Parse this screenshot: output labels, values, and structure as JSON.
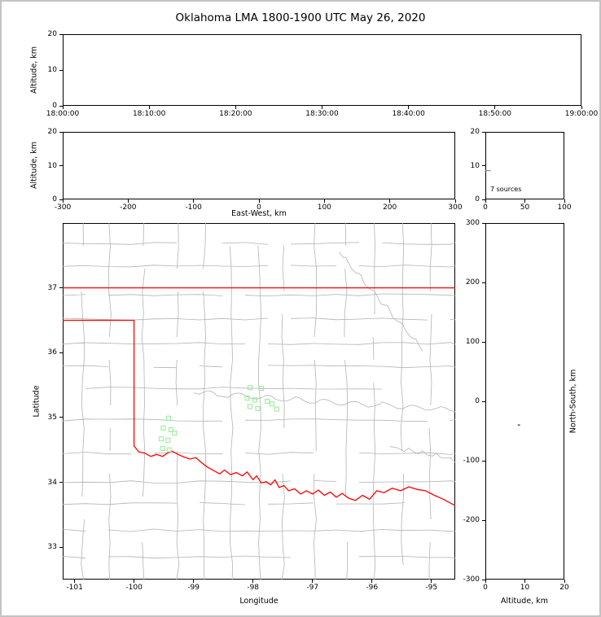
{
  "title": "Oklahoma LMA 1800-1900 UTC May 26, 2020",
  "colors": {
    "state_border": "#ff0000",
    "county_line": "#b3b3b3",
    "source_marker": "#90EE90",
    "axis": "#000000",
    "figure_border": "#c3c3c3",
    "faint_point": "#777777"
  },
  "panels": {
    "time_height": {
      "ylabel": "Altitude, km",
      "yticks": [
        "20",
        "10",
        "0"
      ],
      "xticks": [
        "18:00:00",
        "18:10:00",
        "18:20:00",
        "18:30:00",
        "18:40:00",
        "18:50:00",
        "19:00:00"
      ]
    },
    "ew_height": {
      "ylabel": "Altitude, km",
      "xlabel": "East-West, km",
      "yticks": [
        "20",
        "10",
        "0"
      ],
      "xticks": [
        "-300",
        "-200",
        "-100",
        "0",
        "100",
        "200",
        "300"
      ]
    },
    "histogram": {
      "annotation": "7 sources",
      "yticks": [
        "20",
        "10",
        "0"
      ],
      "xticks": [
        "0",
        "50",
        "100"
      ]
    },
    "map": {
      "xlabel": "Longitude",
      "ylabel": "Latitude",
      "xticks": [
        "-101",
        "-100",
        "-99",
        "-98",
        "-97",
        "-96",
        "-95"
      ],
      "yticks": [
        "37",
        "36",
        "35",
        "34",
        "33"
      ],
      "xlim": [
        -101.2,
        -94.6
      ],
      "ylim": [
        32.5,
        38.0
      ]
    },
    "ns_height": {
      "xlabel": "Altitude, km",
      "ylabel_right": "North-South, km",
      "xticks": [
        "0",
        "10",
        "20"
      ],
      "yticks": [
        "300",
        "200",
        "100",
        "0",
        "-100",
        "-200",
        "-300"
      ],
      "xlim": [
        0,
        20
      ],
      "ylim": [
        -300,
        300
      ]
    }
  },
  "chart_data": {
    "type": "scatter",
    "title": "Oklahoma LMA 1800-1900 UTC May 26, 2020",
    "time_window_utc": [
      "18:00:00",
      "19:00:00"
    ],
    "marker": "open-square",
    "marker_color": "#90EE90",
    "annotation": "7 sources",
    "sources_lonlat": [
      [
        -98.05,
        35.46
      ],
      [
        -97.86,
        35.45
      ],
      [
        -98.1,
        35.3
      ],
      [
        -97.97,
        35.27
      ],
      [
        -98.05,
        35.17
      ],
      [
        -97.92,
        35.14
      ],
      [
        -97.76,
        35.25
      ],
      [
        -97.68,
        35.21
      ],
      [
        -97.6,
        35.13
      ],
      [
        -99.42,
        34.99
      ],
      [
        -99.51,
        34.84
      ],
      [
        -99.38,
        34.81
      ],
      [
        -99.54,
        34.67
      ],
      [
        -99.43,
        34.65
      ],
      [
        -99.32,
        34.76
      ],
      [
        -99.52,
        34.52
      ],
      [
        -99.41,
        34.5
      ]
    ],
    "ns_altitude_point": {
      "altitude_km": 8.5,
      "north_south_km": -40
    },
    "histogram_bar": {
      "altitude_km": 8.5,
      "count": 7
    },
    "map": {
      "xlim": [
        -101.2,
        -94.6
      ],
      "ylim": [
        32.5,
        38.0
      ],
      "state_border_north": [
        [
          -101.2,
          37.0
        ],
        [
          -94.6,
          37.0
        ]
      ],
      "state_border_west_south": [
        [
          -101.2,
          36.5
        ],
        [
          -100.0,
          36.5
        ],
        [
          -100.0,
          34.56
        ],
        [
          -99.92,
          34.47
        ],
        [
          -99.82,
          34.45
        ],
        [
          -99.72,
          34.4
        ],
        [
          -99.62,
          34.43
        ],
        [
          -99.52,
          34.4
        ],
        [
          -99.44,
          34.45
        ],
        [
          -99.36,
          34.48
        ],
        [
          -99.26,
          34.43
        ],
        [
          -99.16,
          34.39
        ],
        [
          -99.06,
          34.36
        ],
        [
          -98.96,
          34.38
        ],
        [
          -98.86,
          34.3
        ],
        [
          -98.76,
          34.23
        ],
        [
          -98.66,
          34.18
        ],
        [
          -98.56,
          34.13
        ],
        [
          -98.48,
          34.19
        ],
        [
          -98.38,
          34.12
        ],
        [
          -98.28,
          34.15
        ],
        [
          -98.18,
          34.1
        ],
        [
          -98.1,
          34.16
        ],
        [
          -98.0,
          34.04
        ],
        [
          -97.94,
          34.1
        ],
        [
          -97.86,
          33.99
        ],
        [
          -97.78,
          34.01
        ],
        [
          -97.7,
          33.96
        ],
        [
          -97.63,
          34.04
        ],
        [
          -97.56,
          33.92
        ],
        [
          -97.48,
          33.95
        ],
        [
          -97.4,
          33.87
        ],
        [
          -97.3,
          33.9
        ],
        [
          -97.2,
          33.82
        ],
        [
          -97.1,
          33.87
        ],
        [
          -97.0,
          33.82
        ],
        [
          -96.9,
          33.88
        ],
        [
          -96.8,
          33.8
        ],
        [
          -96.7,
          33.85
        ],
        [
          -96.6,
          33.77
        ],
        [
          -96.5,
          33.83
        ],
        [
          -96.4,
          33.76
        ],
        [
          -96.28,
          33.72
        ],
        [
          -96.16,
          33.8
        ],
        [
          -96.04,
          33.74
        ],
        [
          -95.92,
          33.87
        ],
        [
          -95.8,
          33.84
        ],
        [
          -95.66,
          33.91
        ],
        [
          -95.52,
          33.87
        ],
        [
          -95.38,
          33.93
        ],
        [
          -95.24,
          33.89
        ],
        [
          -95.1,
          33.87
        ],
        [
          -94.95,
          33.8
        ],
        [
          -94.8,
          33.74
        ],
        [
          -94.6,
          33.64
        ]
      ]
    }
  }
}
